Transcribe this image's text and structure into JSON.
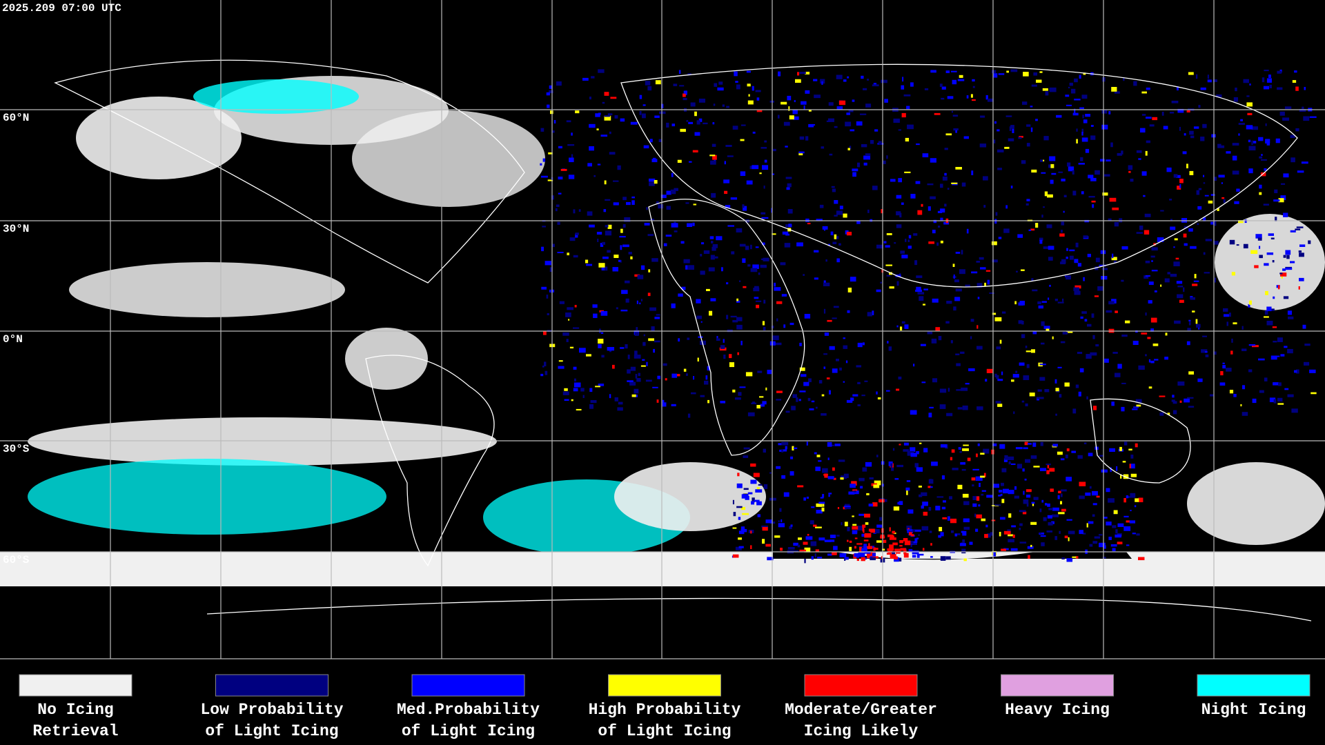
{
  "header": {
    "timestamp": "2025.209 07:00 UTC"
  },
  "map": {
    "latitude_labels": [
      "60°N",
      "30°N",
      "0°N",
      "30°S",
      "60°S"
    ]
  },
  "legend": [
    {
      "lines": [
        "No Icing",
        "Retrieval"
      ],
      "color": "#f0f0f0"
    },
    {
      "lines": [
        "Low Probability",
        "of Light Icing"
      ],
      "color": "#000080"
    },
    {
      "lines": [
        "Med.Probability",
        "of Light Icing"
      ],
      "color": "#0000ff"
    },
    {
      "lines": [
        "High Probability",
        "of Light Icing"
      ],
      "color": "#ffff00"
    },
    {
      "lines": [
        "Moderate/Greater",
        "Icing Likely"
      ],
      "color": "#ff0000"
    },
    {
      "lines": [
        "Heavy Icing"
      ],
      "color": "#e0a0e0"
    },
    {
      "lines": [
        "Night Icing"
      ],
      "color": "#00ffff"
    }
  ]
}
